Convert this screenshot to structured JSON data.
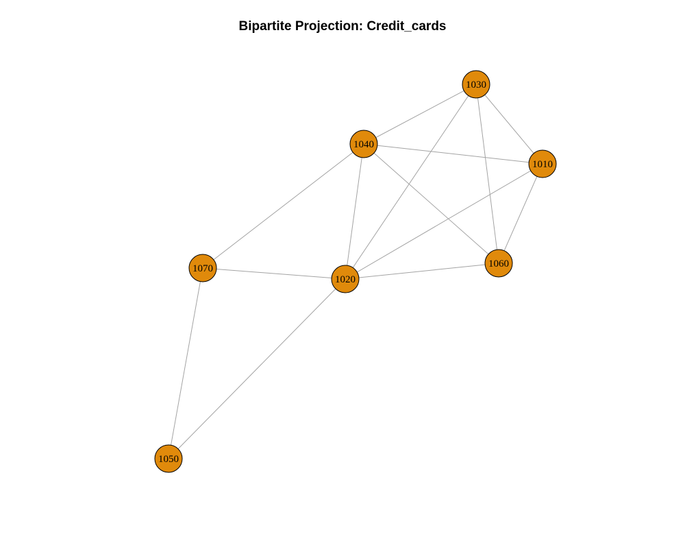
{
  "title": "Bipartite Projection: Credit_cards",
  "node_color": "#e08a0b",
  "edge_color": "#a3a3a3",
  "nodes": [
    {
      "id": "1030",
      "label": "1030"
    },
    {
      "id": "1040",
      "label": "1040"
    },
    {
      "id": "1010",
      "label": "1010"
    },
    {
      "id": "1070",
      "label": "1070"
    },
    {
      "id": "1020",
      "label": "1020"
    },
    {
      "id": "1060",
      "label": "1060"
    },
    {
      "id": "1050",
      "label": "1050"
    }
  ],
  "edges": [
    [
      "1030",
      "1040"
    ],
    [
      "1030",
      "1010"
    ],
    [
      "1030",
      "1020"
    ],
    [
      "1030",
      "1060"
    ],
    [
      "1040",
      "1010"
    ],
    [
      "1040",
      "1070"
    ],
    [
      "1040",
      "1020"
    ],
    [
      "1040",
      "1060"
    ],
    [
      "1010",
      "1020"
    ],
    [
      "1010",
      "1060"
    ],
    [
      "1070",
      "1020"
    ],
    [
      "1070",
      "1050"
    ],
    [
      "1020",
      "1060"
    ],
    [
      "1020",
      "1050"
    ]
  ]
}
